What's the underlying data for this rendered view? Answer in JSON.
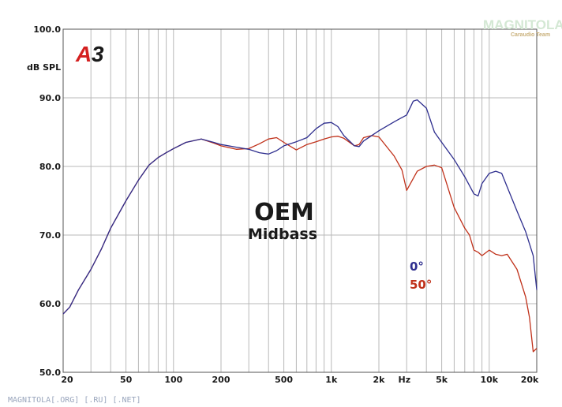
{
  "badge": "A3",
  "brand": {
    "name": "MAGNITOLA",
    "sub": "Caraudio Team"
  },
  "watermark": "MAGNITOLA[.ORG] [.RU] [.NET]",
  "colors": {
    "series_0": "#2e2e8e",
    "series_50": "#c0311a",
    "grid": "#b8b8b8",
    "frame": "#555555",
    "logo_red": "#d42020"
  },
  "chart_data": {
    "type": "line",
    "title": "OEM",
    "subtitle": "Midbass",
    "ylabel": "dB SPL",
    "xlabel": "Hz",
    "x_scale": "log",
    "xlim": [
      20,
      20000
    ],
    "ylim": [
      50,
      100
    ],
    "grid": true,
    "legend_position": "right",
    "y_ticks": [
      "100.0",
      "90.0",
      "80.0",
      "70.0",
      "60.0",
      "50.0"
    ],
    "x_ticks": [
      "20",
      "50",
      "100",
      "200",
      "500",
      "1k",
      "2k",
      "Hz",
      "5k",
      "10k",
      "20k"
    ],
    "series": [
      {
        "name": "0°",
        "x": [
          20,
          22,
          25,
          30,
          35,
          40,
          50,
          60,
          70,
          80,
          90,
          100,
          120,
          150,
          180,
          200,
          250,
          300,
          350,
          400,
          450,
          500,
          600,
          700,
          800,
          900,
          1000,
          1100,
          1200,
          1400,
          1500,
          1600,
          1800,
          2000,
          2500,
          3000,
          3300,
          3500,
          4000,
          4500,
          5000,
          6000,
          7000,
          8000,
          8500,
          9000,
          10000,
          11000,
          12000,
          13000,
          15000,
          17000,
          19000,
          20000
        ],
        "y": [
          58.5,
          59.5,
          62,
          65,
          68,
          71,
          75,
          78,
          80.2,
          81.3,
          82,
          82.6,
          83.5,
          84,
          83.5,
          83.2,
          82.8,
          82.5,
          82,
          81.8,
          82.3,
          83,
          83.6,
          84.2,
          85.5,
          86.3,
          86.4,
          85.8,
          84.5,
          83,
          82.9,
          83.7,
          84.5,
          85.2,
          86.5,
          87.5,
          89.5,
          89.7,
          88.5,
          85,
          83.5,
          81,
          78.5,
          76,
          75.7,
          77.5,
          79,
          79.3,
          79,
          77,
          73.5,
          70.5,
          67,
          62
        ]
      },
      {
        "name": "50°",
        "x": [
          20,
          22,
          25,
          30,
          35,
          40,
          50,
          60,
          70,
          80,
          90,
          100,
          120,
          150,
          180,
          200,
          250,
          300,
          350,
          400,
          450,
          500,
          600,
          700,
          800,
          900,
          1000,
          1100,
          1200,
          1400,
          1500,
          1600,
          1800,
          2000,
          2500,
          2800,
          3000,
          3500,
          4000,
          4500,
          5000,
          6000,
          7000,
          7500,
          8000,
          8500,
          9000,
          10000,
          11000,
          12000,
          13000,
          15000,
          17000,
          18000,
          19000,
          20000
        ],
        "y": [
          58.5,
          59.5,
          62,
          65,
          68,
          71,
          75,
          78,
          80.2,
          81.3,
          82,
          82.6,
          83.5,
          84,
          83.4,
          83,
          82.5,
          82.6,
          83.3,
          84,
          84.2,
          83.5,
          82.4,
          83.2,
          83.6,
          84,
          84.3,
          84.4,
          84.1,
          83,
          83.2,
          84.2,
          84.5,
          84.3,
          81.5,
          79.5,
          76.5,
          79.3,
          80,
          80.2,
          79.8,
          74,
          71,
          70,
          67.8,
          67.5,
          67,
          67.8,
          67.2,
          67,
          67.2,
          65,
          61,
          58,
          53,
          53.5
        ]
      }
    ]
  }
}
